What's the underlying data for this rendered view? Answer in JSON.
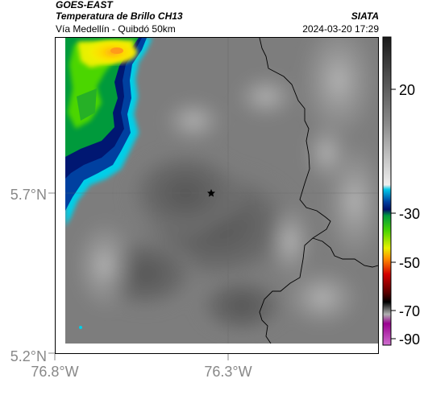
{
  "header": {
    "satellite": "GOES-EAST",
    "product": "Temperatura de Brillo CH13",
    "route": "Vía Medellín - Quibdó 50km",
    "organization": "SIATA",
    "timestamp": "2024-03-20 17:29"
  },
  "axes": {
    "lat_ticks": [
      "5.7°N",
      "5.2°N"
    ],
    "lon_ticks": [
      "76.8°W",
      "76.3°W"
    ]
  },
  "colorbar": {
    "ticks": [
      "20",
      "-30",
      "-50",
      "-70",
      "-90"
    ],
    "stops": [
      "#1a1a1a",
      "#4a4a4a",
      "#8a8a8a",
      "#c8c8c8",
      "#eeeeee",
      "#00c8e8",
      "#0040a0",
      "#00106a",
      "#009a3c",
      "#4cd600",
      "#e8f000",
      "#ff8c00",
      "#d40000",
      "#5a0000",
      "#000000",
      "#b0b0b0",
      "#9a0090",
      "#d070d0"
    ]
  },
  "colors": {
    "cloud_cold": "#ff9a1a",
    "cloud_mid": "#26b026",
    "cloud_edge": "#00cfe8"
  },
  "icons": {
    "marker": "star-icon"
  }
}
